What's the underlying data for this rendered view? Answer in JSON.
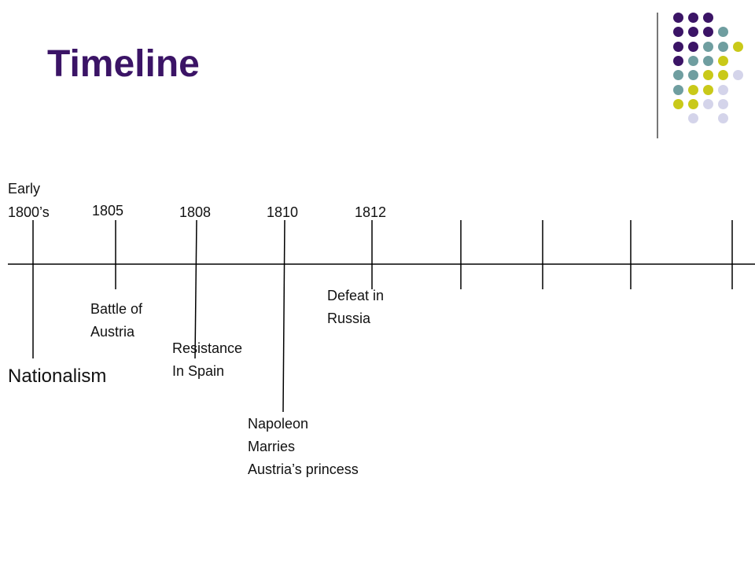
{
  "slide": {
    "title": "Timeline"
  },
  "decoration": {
    "colors": {
      "purple": "#3b1466",
      "teal": "#6f9ea0",
      "olive": "#c9c919",
      "lavender": "#d4d4ea",
      "divider": "#777777"
    },
    "dot_grid": [
      [
        "purple",
        "purple",
        "purple",
        null,
        null
      ],
      [
        "purple",
        "purple",
        "purple",
        "teal",
        null
      ],
      [
        "purple",
        "purple",
        "teal",
        "teal",
        "olive"
      ],
      [
        "purple",
        "teal",
        "teal",
        "olive",
        null
      ],
      [
        "teal",
        "teal",
        "olive",
        "olive",
        "lavender"
      ],
      [
        "teal",
        "olive",
        "olive",
        "lavender",
        null
      ],
      [
        "olive",
        "olive",
        "lavender",
        "lavender",
        null
      ],
      [
        null,
        "lavender",
        null,
        "lavender",
        null
      ]
    ]
  },
  "timeline": {
    "years": {
      "early_line1": "Early",
      "early_line2": "1800’s",
      "y1805": "1805",
      "y1808": "1808",
      "y1810": "1810",
      "y1812": "1812"
    },
    "events": {
      "nationalism": "Nationalism",
      "battle_austria": "Battle of\nAustria",
      "resistance_spain": "Resistance\nIn Spain",
      "napoleon_marries": "Napoleon\nMarries\nAustria’s princess",
      "defeat_russia": "Defeat in\nRussia"
    }
  }
}
